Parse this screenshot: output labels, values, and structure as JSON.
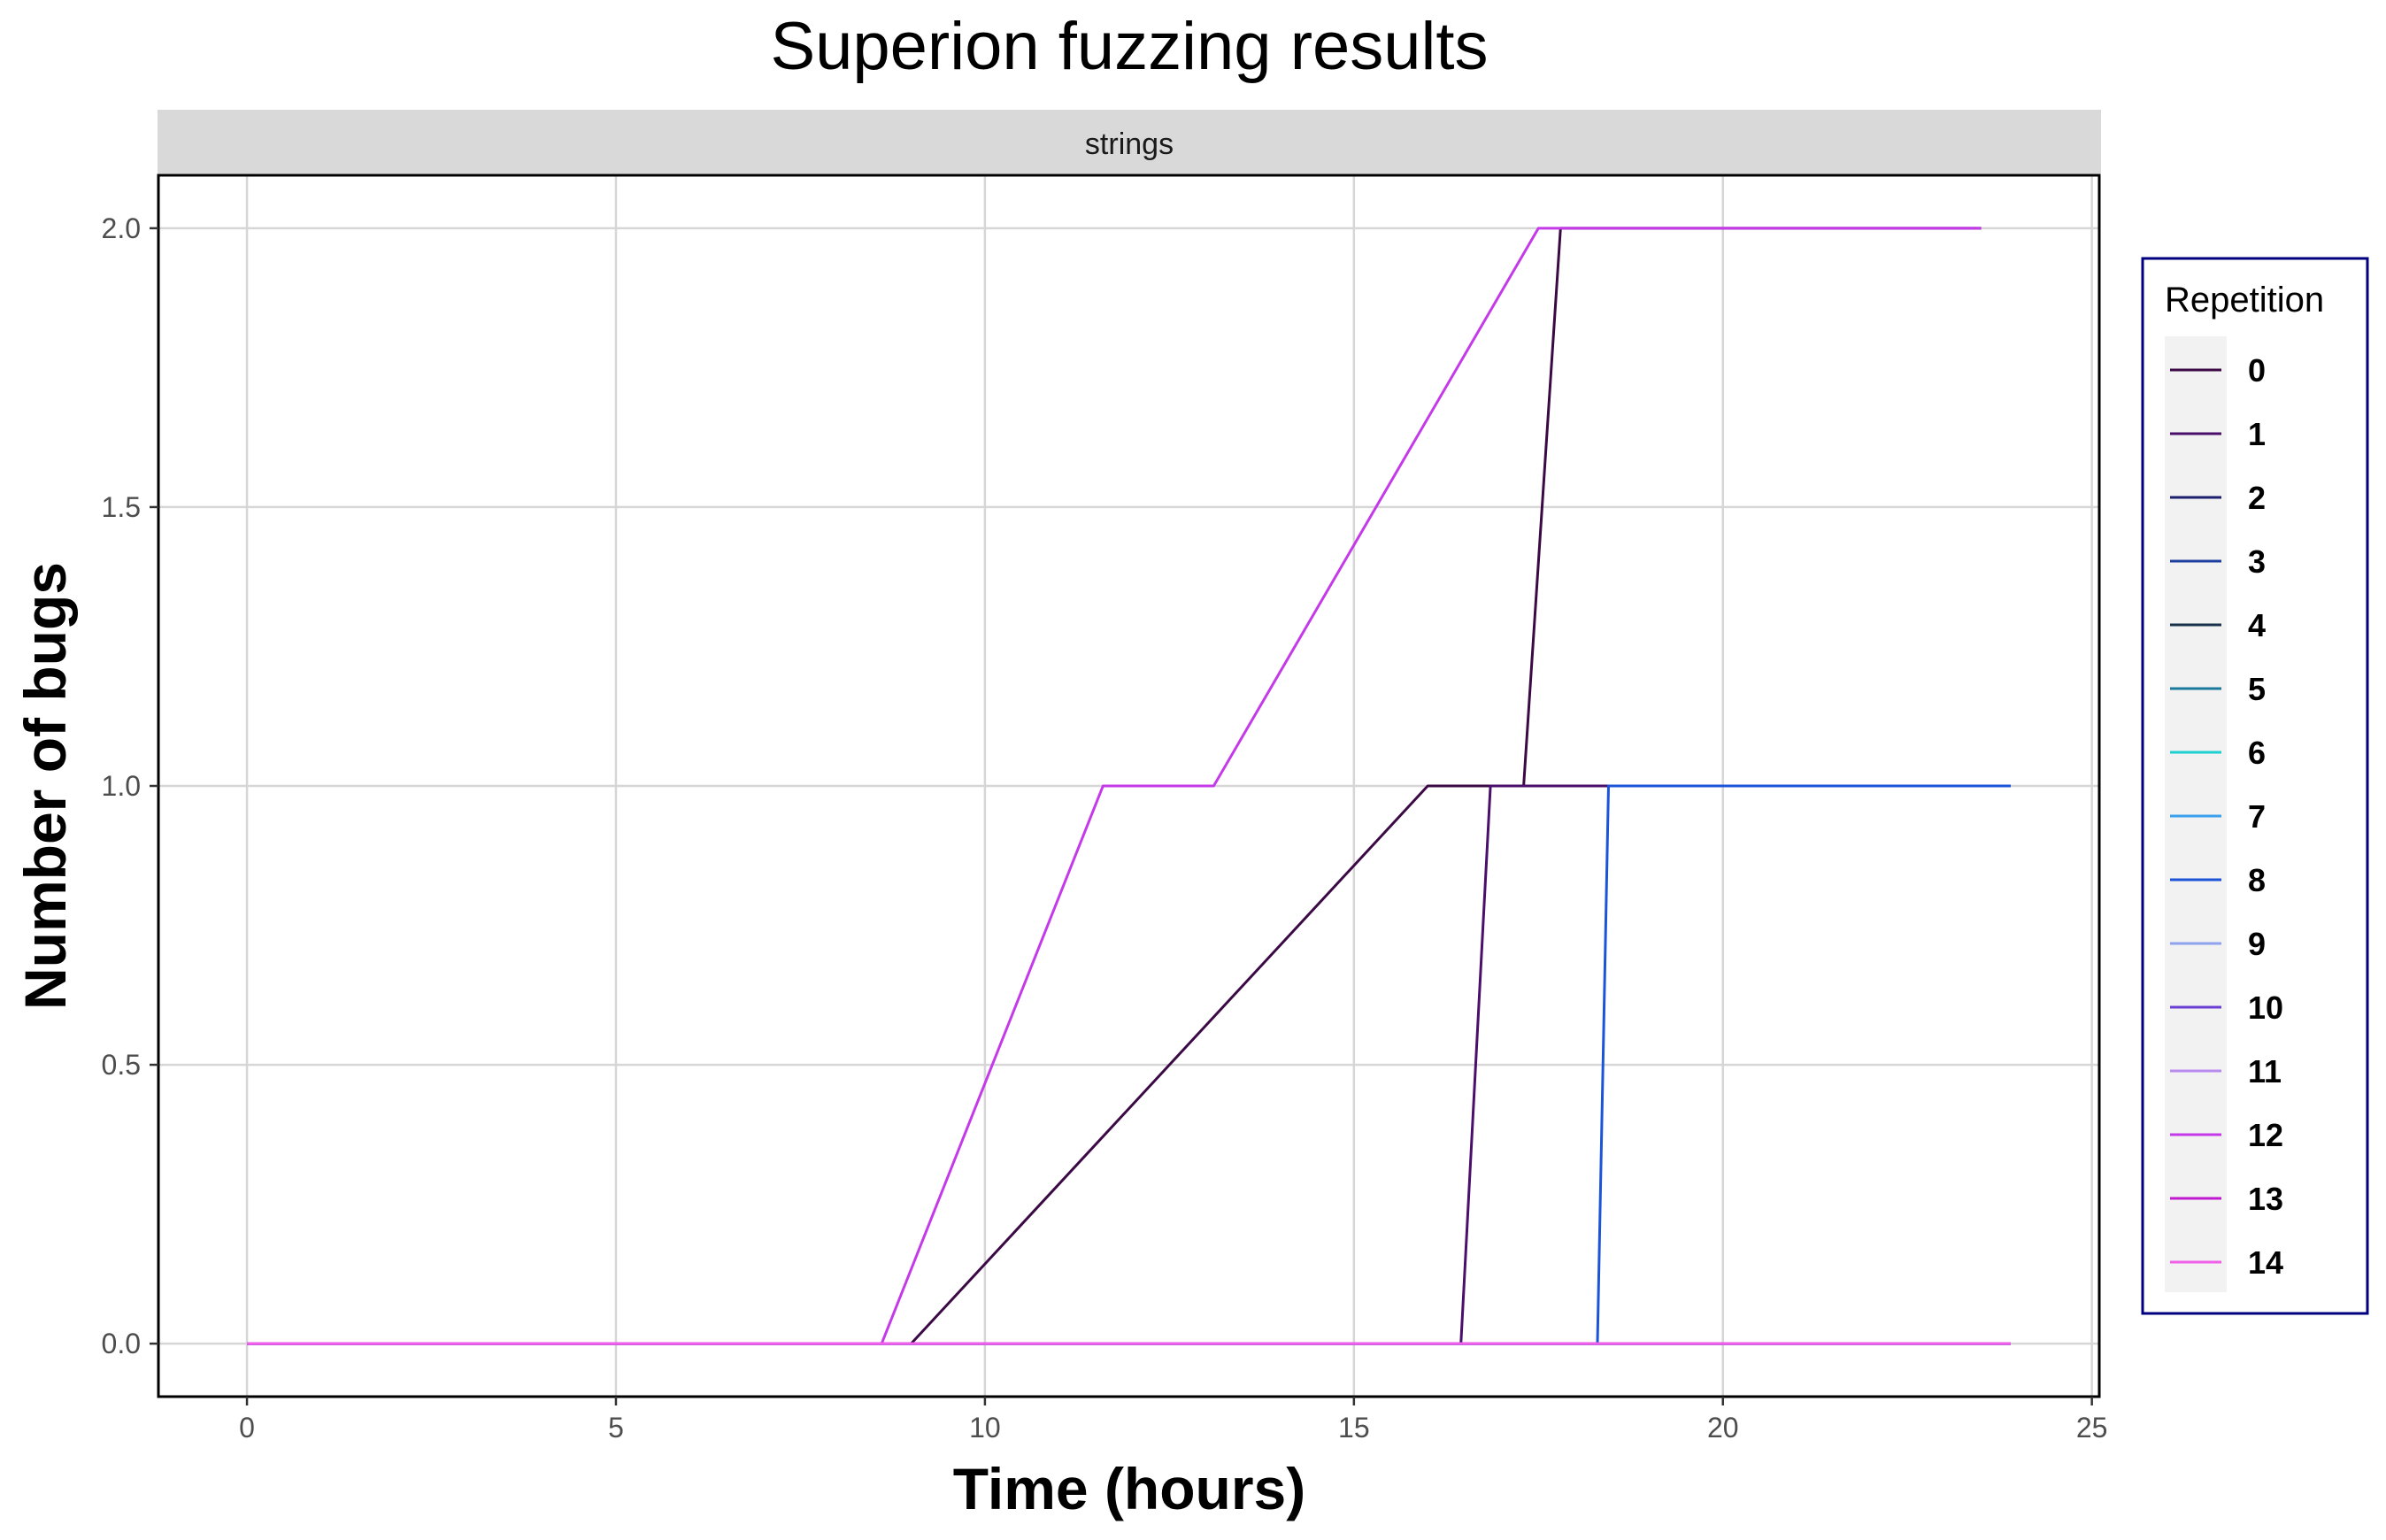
{
  "chart_data": {
    "type": "line",
    "title": "Superion fuzzing results",
    "facet": "strings",
    "xlabel": "Time (hours)",
    "ylabel": "Number of bugs",
    "xlim": [
      -1.2,
      25.1
    ],
    "ylim": [
      -0.095,
      2.095
    ],
    "x_ticks": [
      0,
      5,
      10,
      15,
      20,
      25
    ],
    "y_ticks": [
      0.0,
      0.5,
      1.0,
      1.5,
      2.0
    ],
    "x_tick_labels": [
      "0",
      "5",
      "10",
      "15",
      "20",
      "25"
    ],
    "y_tick_labels": [
      "0.0",
      "0.5",
      "1.0",
      "1.5",
      "2.0"
    ],
    "grid": true,
    "legend_title": "Repetition",
    "legend_position": "right",
    "series": [
      {
        "name": "0",
        "color": "#3b0a45",
        "x": [
          0,
          9.0,
          16.0,
          17.3,
          17.8,
          23.5
        ],
        "y": [
          0,
          0,
          1,
          1,
          2,
          2
        ]
      },
      {
        "name": "1",
        "color": "#4a0f6b",
        "x": [
          0,
          16.45,
          16.85,
          23.9
        ],
        "y": [
          0,
          0,
          1,
          1
        ]
      },
      {
        "name": "2",
        "color": "#1c1f6e",
        "x": [
          0,
          23.9
        ],
        "y": [
          0,
          0
        ]
      },
      {
        "name": "3",
        "color": "#1f3f9e",
        "x": [
          0,
          23.9
        ],
        "y": [
          0,
          0
        ]
      },
      {
        "name": "4",
        "color": "#17324a",
        "x": [
          0,
          23.9
        ],
        "y": [
          0,
          0
        ]
      },
      {
        "name": "5",
        "color": "#1b7a9c",
        "x": [
          0,
          23.9
        ],
        "y": [
          0,
          0
        ]
      },
      {
        "name": "6",
        "color": "#1fd0d0",
        "x": [
          0,
          23.9
        ],
        "y": [
          0,
          0
        ]
      },
      {
        "name": "7",
        "color": "#3aa0ee",
        "x": [
          0,
          23.9
        ],
        "y": [
          0,
          0
        ]
      },
      {
        "name": "8",
        "color": "#1c54d8",
        "x": [
          0,
          18.3,
          18.45,
          23.9
        ],
        "y": [
          0,
          0,
          1,
          1
        ]
      },
      {
        "name": "9",
        "color": "#8ea2f0",
        "x": [
          0,
          23.9
        ],
        "y": [
          0,
          0
        ]
      },
      {
        "name": "10",
        "color": "#6a3fd4",
        "x": [
          0,
          23.9
        ],
        "y": [
          0,
          0
        ]
      },
      {
        "name": "11",
        "color": "#b98af0",
        "x": [
          0,
          23.9
        ],
        "y": [
          0,
          0
        ]
      },
      {
        "name": "12",
        "color": "#c43ae8",
        "x": [
          0,
          8.6,
          11.6,
          13.1,
          17.5,
          23.5
        ],
        "y": [
          0,
          0,
          1,
          1,
          2,
          2
        ]
      },
      {
        "name": "13",
        "color": "#c01ad0",
        "x": [
          0,
          23.9
        ],
        "y": [
          0,
          0
        ]
      },
      {
        "name": "14",
        "color": "#f060e8",
        "x": [
          0,
          23.9
        ],
        "y": [
          0,
          0
        ]
      }
    ]
  }
}
